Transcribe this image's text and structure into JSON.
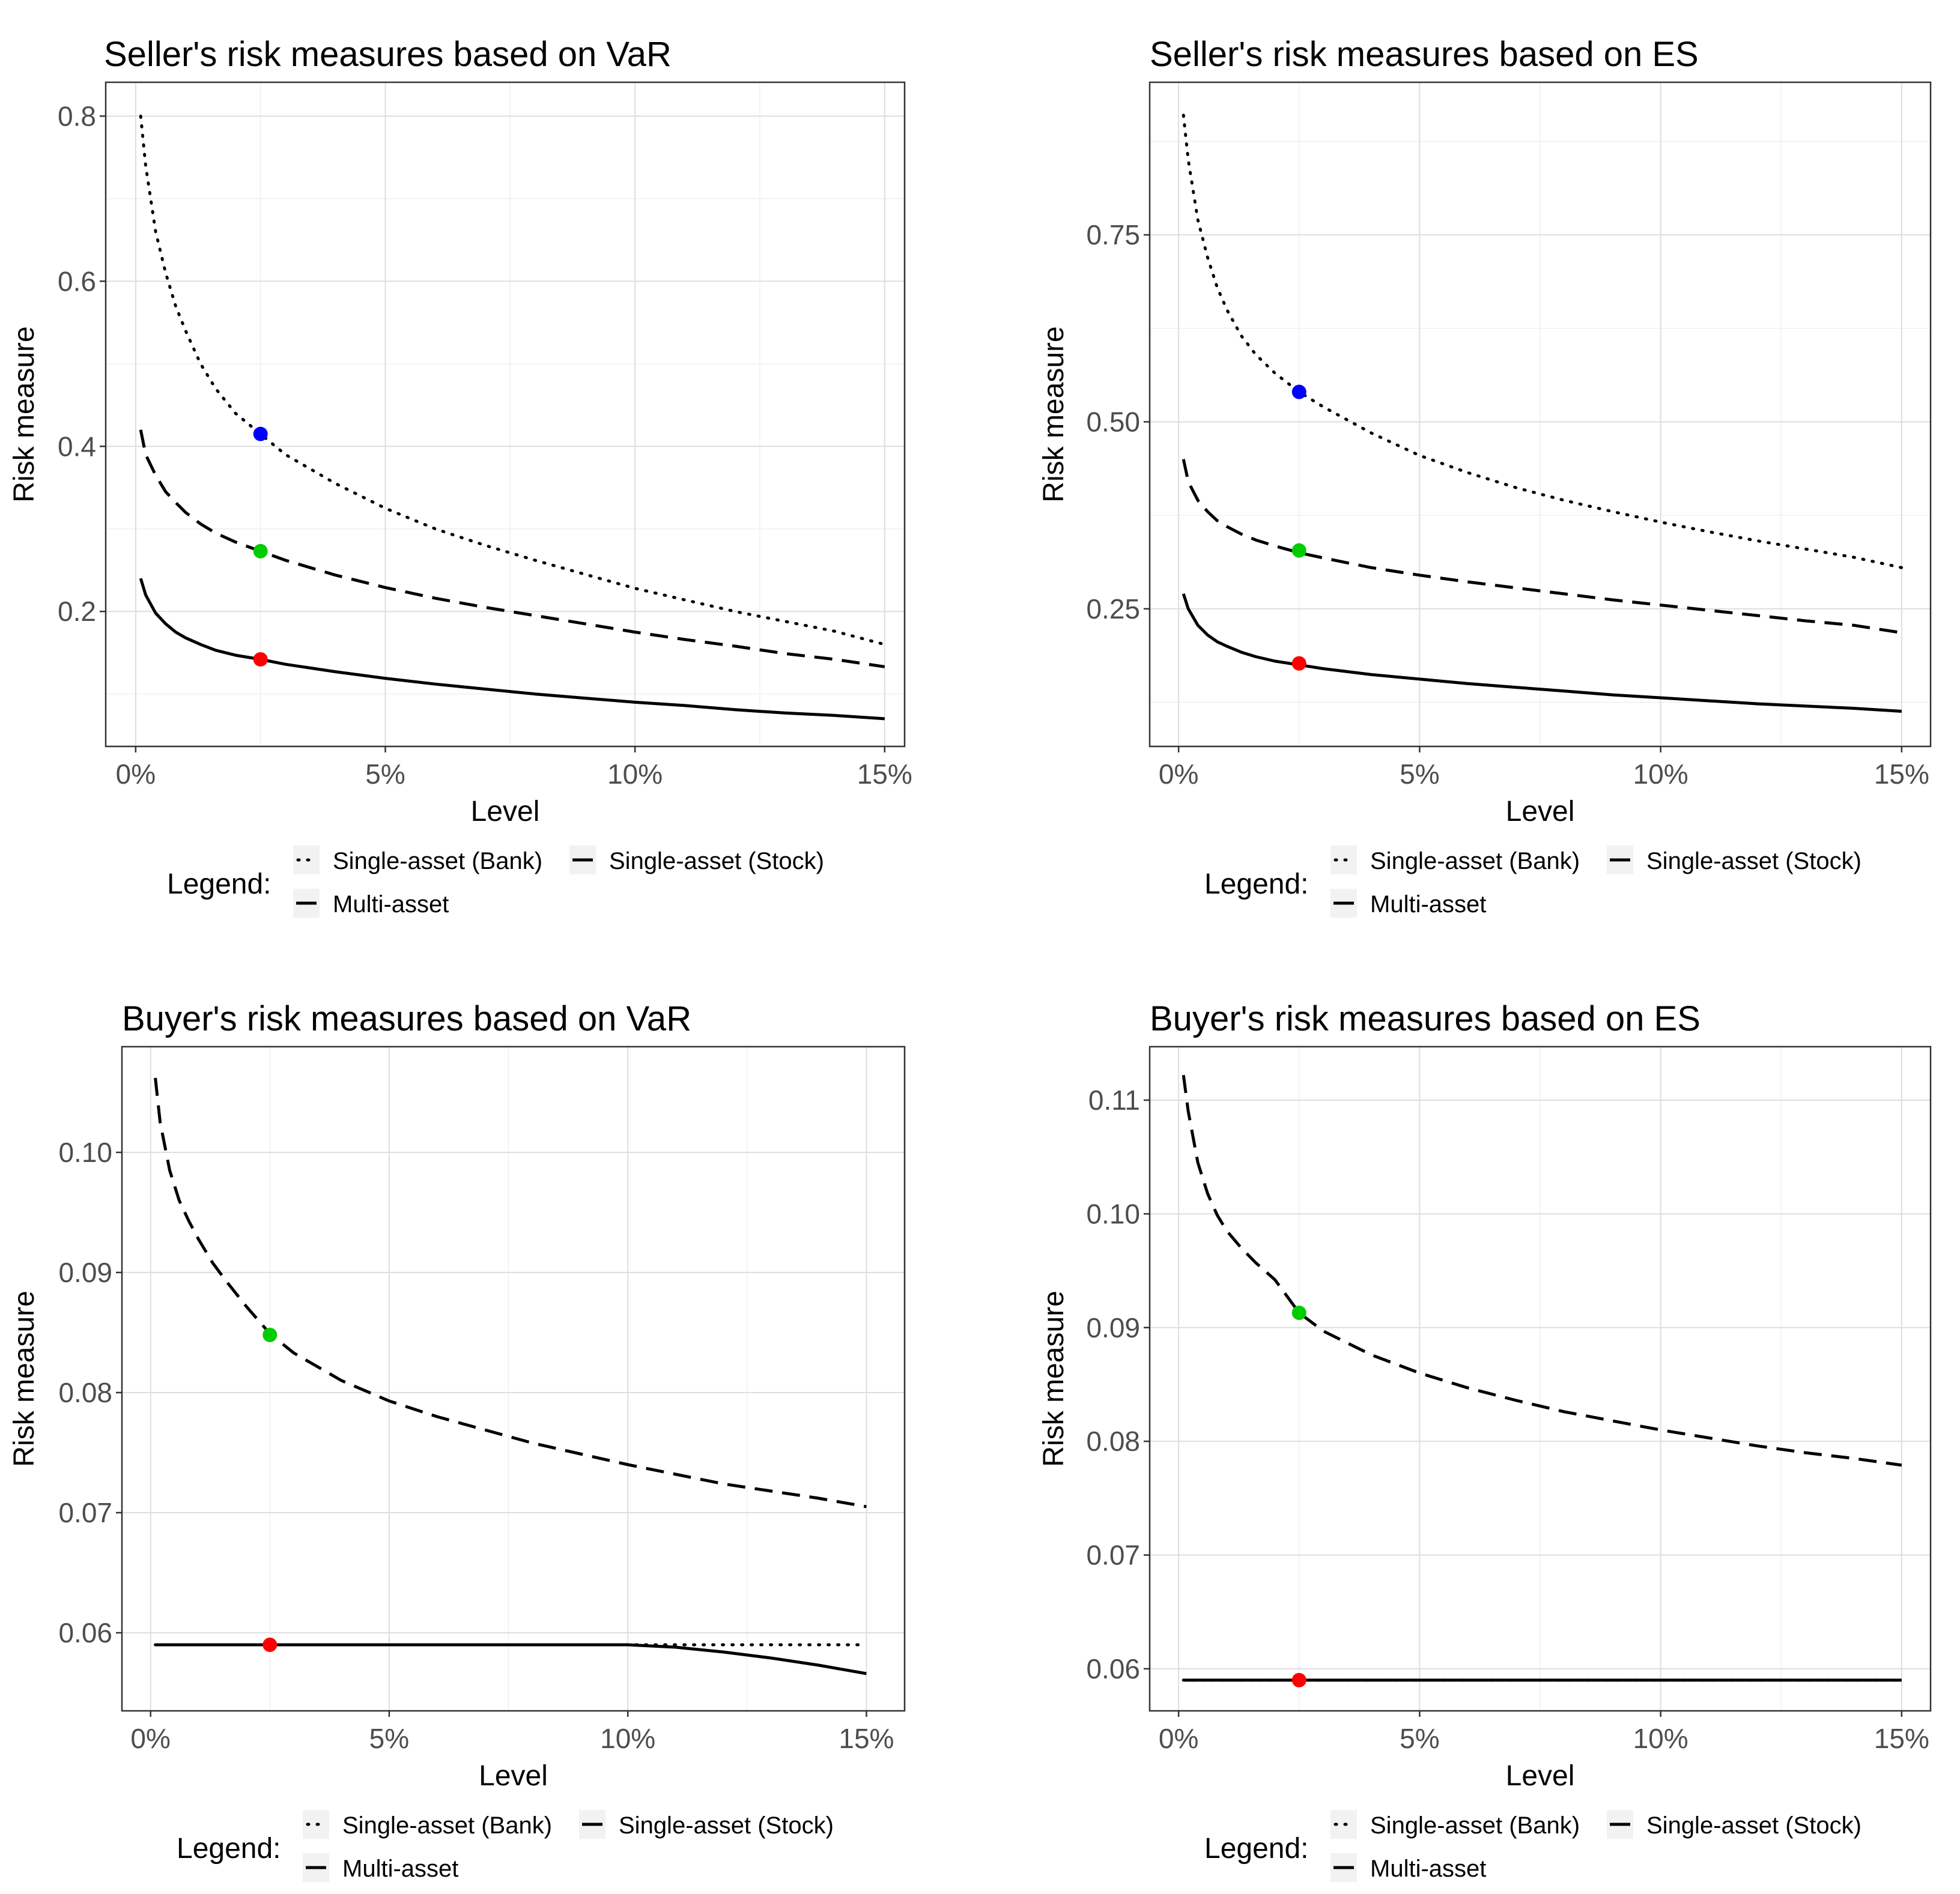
{
  "colors": {
    "line": "#000000",
    "grid": "#dedede",
    "panel_border": "#333333",
    "tick_text": "#4d4d4d",
    "text": "#000000",
    "key_bg": "#f2f2f2",
    "point_blue": "#0000ff",
    "point_green": "#00cd00",
    "point_red": "#ff0000"
  },
  "chart_data": [
    {
      "type": "line",
      "title": "Seller's risk measures based on VaR",
      "xlabel": "Level",
      "ylabel": "Risk measure",
      "xlim": [
        -0.006,
        0.154
      ],
      "ylim": [
        0.0365,
        0.841
      ],
      "x_ticks": [
        0,
        0.05,
        0.1,
        0.15
      ],
      "x_tick_labels": [
        "0%",
        "5%",
        "10%",
        "15%"
      ],
      "y_ticks": [
        0.2,
        0.4,
        0.6,
        0.8
      ],
      "y_tick_labels": [
        "0.2",
        "0.4",
        "0.6",
        "0.8"
      ],
      "y_minor": [
        0.1,
        0.3,
        0.5,
        0.7
      ],
      "series": [
        {
          "name": "Single-asset (Bank)",
          "style": "dotted",
          "x": [
            0.001,
            0.002,
            0.004,
            0.006,
            0.008,
            0.01,
            0.013,
            0.016,
            0.02,
            0.025,
            0.03,
            0.04,
            0.05,
            0.06,
            0.07,
            0.08,
            0.09,
            0.1,
            0.11,
            0.12,
            0.13,
            0.14,
            0.15
          ],
          "y": [
            0.8,
            0.74,
            0.66,
            0.61,
            0.57,
            0.54,
            0.5,
            0.47,
            0.44,
            0.415,
            0.39,
            0.355,
            0.325,
            0.3,
            0.28,
            0.262,
            0.245,
            0.228,
            0.214,
            0.2,
            0.188,
            0.176,
            0.16
          ]
        },
        {
          "name": "Single-asset (Stock)",
          "style": "dashed",
          "x": [
            0.001,
            0.002,
            0.004,
            0.006,
            0.008,
            0.01,
            0.013,
            0.016,
            0.02,
            0.025,
            0.03,
            0.04,
            0.05,
            0.06,
            0.07,
            0.08,
            0.09,
            0.1,
            0.11,
            0.12,
            0.13,
            0.14,
            0.15
          ],
          "y": [
            0.42,
            0.39,
            0.365,
            0.345,
            0.332,
            0.32,
            0.306,
            0.295,
            0.284,
            0.273,
            0.262,
            0.244,
            0.229,
            0.216,
            0.205,
            0.195,
            0.185,
            0.175,
            0.166,
            0.158,
            0.149,
            0.142,
            0.133
          ]
        },
        {
          "name": "Multi-asset",
          "style": "solid",
          "x": [
            0.001,
            0.002,
            0.004,
            0.006,
            0.008,
            0.01,
            0.013,
            0.016,
            0.02,
            0.025,
            0.03,
            0.04,
            0.05,
            0.06,
            0.07,
            0.08,
            0.09,
            0.1,
            0.11,
            0.12,
            0.13,
            0.14,
            0.15
          ],
          "y": [
            0.24,
            0.22,
            0.198,
            0.185,
            0.175,
            0.168,
            0.16,
            0.153,
            0.147,
            0.142,
            0.136,
            0.127,
            0.119,
            0.112,
            0.106,
            0.1,
            0.095,
            0.09,
            0.086,
            0.081,
            0.077,
            0.074,
            0.07
          ]
        }
      ],
      "points": [
        {
          "x": 0.025,
          "y": 0.415,
          "color": "blue"
        },
        {
          "x": 0.025,
          "y": 0.273,
          "color": "green"
        },
        {
          "x": 0.025,
          "y": 0.142,
          "color": "red"
        }
      ],
      "legend": {
        "title": "Legend:",
        "entries": [
          "Single-asset (Bank)",
          "Single-asset (Stock)",
          "Multi-asset"
        ],
        "position": "bottom"
      }
    },
    {
      "type": "line",
      "title": "Seller's risk measures based on ES",
      "xlabel": "Level",
      "ylabel": "Risk measure",
      "xlim": [
        -0.006,
        0.156
      ],
      "ylim": [
        0.066,
        0.954
      ],
      "x_ticks": [
        0,
        0.05,
        0.1,
        0.15
      ],
      "x_tick_labels": [
        "0%",
        "5%",
        "10%",
        "15%"
      ],
      "y_ticks": [
        0.25,
        0.5,
        0.75
      ],
      "y_tick_labels": [
        "0.25",
        "0.50",
        "0.75"
      ],
      "y_minor": [
        0.125,
        0.375,
        0.625,
        0.875
      ],
      "series": [
        {
          "name": "Single-asset (Bank)",
          "style": "dotted",
          "x": [
            0.001,
            0.002,
            0.004,
            0.006,
            0.008,
            0.01,
            0.013,
            0.016,
            0.02,
            0.025,
            0.03,
            0.04,
            0.05,
            0.06,
            0.07,
            0.08,
            0.09,
            0.1,
            0.11,
            0.12,
            0.13,
            0.14,
            0.15
          ],
          "y": [
            0.91,
            0.85,
            0.77,
            0.72,
            0.68,
            0.65,
            0.615,
            0.59,
            0.565,
            0.54,
            0.52,
            0.485,
            0.455,
            0.432,
            0.412,
            0.395,
            0.38,
            0.366,
            0.353,
            0.341,
            0.33,
            0.319,
            0.305
          ]
        },
        {
          "name": "Single-asset (Stock)",
          "style": "dashed",
          "x": [
            0.001,
            0.002,
            0.004,
            0.006,
            0.008,
            0.01,
            0.013,
            0.016,
            0.02,
            0.025,
            0.03,
            0.04,
            0.05,
            0.06,
            0.07,
            0.08,
            0.09,
            0.1,
            0.11,
            0.12,
            0.13,
            0.14,
            0.15
          ],
          "y": [
            0.45,
            0.42,
            0.395,
            0.38,
            0.368,
            0.36,
            0.35,
            0.342,
            0.334,
            0.325,
            0.318,
            0.305,
            0.295,
            0.286,
            0.278,
            0.27,
            0.262,
            0.255,
            0.248,
            0.241,
            0.234,
            0.228,
            0.218
          ]
        },
        {
          "name": "Multi-asset",
          "style": "solid",
          "x": [
            0.001,
            0.002,
            0.004,
            0.006,
            0.008,
            0.01,
            0.013,
            0.016,
            0.02,
            0.025,
            0.03,
            0.04,
            0.05,
            0.06,
            0.07,
            0.08,
            0.09,
            0.1,
            0.11,
            0.12,
            0.13,
            0.14,
            0.15
          ],
          "y": [
            0.27,
            0.25,
            0.228,
            0.215,
            0.206,
            0.2,
            0.192,
            0.186,
            0.18,
            0.175,
            0.17,
            0.162,
            0.156,
            0.15,
            0.145,
            0.14,
            0.135,
            0.131,
            0.127,
            0.123,
            0.12,
            0.117,
            0.113
          ]
        }
      ],
      "points": [
        {
          "x": 0.025,
          "y": 0.54,
          "color": "blue"
        },
        {
          "x": 0.025,
          "y": 0.328,
          "color": "green"
        },
        {
          "x": 0.025,
          "y": 0.177,
          "color": "red"
        }
      ],
      "legend": {
        "title": "Legend:",
        "entries": [
          "Single-asset (Bank)",
          "Single-asset (Stock)",
          "Multi-asset"
        ],
        "position": "bottom"
      }
    },
    {
      "type": "line",
      "title": "Buyer's risk measures based on VaR",
      "xlabel": "Level",
      "ylabel": "Risk measure",
      "xlim": [
        -0.006,
        0.158
      ],
      "ylim": [
        0.0535,
        0.1088
      ],
      "x_ticks": [
        0,
        0.05,
        0.1,
        0.15
      ],
      "x_tick_labels": [
        "0%",
        "5%",
        "10%",
        "15%"
      ],
      "y_ticks": [
        0.06,
        0.07,
        0.08,
        0.09,
        0.1
      ],
      "y_tick_labels": [
        "0.06",
        "0.07",
        "0.08",
        "0.09",
        "0.10"
      ],
      "y_minor": [],
      "series": [
        {
          "name": "Single-asset (Bank)",
          "style": "dotted",
          "x": [
            0.001,
            0.025,
            0.05,
            0.075,
            0.1,
            0.125,
            0.15
          ],
          "y": [
            0.059,
            0.059,
            0.059,
            0.059,
            0.059,
            0.059,
            0.059
          ]
        },
        {
          "name": "Single-asset (Stock)",
          "style": "dashed",
          "x": [
            0.001,
            0.002,
            0.004,
            0.006,
            0.008,
            0.01,
            0.013,
            0.016,
            0.02,
            0.025,
            0.03,
            0.04,
            0.05,
            0.06,
            0.07,
            0.08,
            0.09,
            0.1,
            0.11,
            0.12,
            0.13,
            0.14,
            0.15
          ],
          "y": [
            0.1062,
            0.1025,
            0.0985,
            0.096,
            0.0943,
            0.0928,
            0.0908,
            0.0892,
            0.0872,
            0.0849,
            0.0833,
            0.081,
            0.0793,
            0.078,
            0.0769,
            0.0758,
            0.0749,
            0.074,
            0.0732,
            0.0724,
            0.0718,
            0.0712,
            0.0705
          ]
        },
        {
          "name": "Multi-asset",
          "style": "solid",
          "x": [
            0.001,
            0.025,
            0.05,
            0.075,
            0.1,
            0.11,
            0.12,
            0.13,
            0.14,
            0.15
          ],
          "y": [
            0.059,
            0.059,
            0.059,
            0.059,
            0.059,
            0.0588,
            0.0584,
            0.0579,
            0.0573,
            0.0566
          ]
        }
      ],
      "points": [
        {
          "x": 0.025,
          "y": 0.0848,
          "color": "green"
        },
        {
          "x": 0.025,
          "y": 0.059,
          "color": "red"
        }
      ],
      "legend": {
        "title": "Legend:",
        "entries": [
          "Single-asset (Bank)",
          "Single-asset (Stock)",
          "Multi-asset"
        ],
        "position": "bottom"
      }
    },
    {
      "type": "line",
      "title": "Buyer's risk measures based on ES",
      "xlabel": "Level",
      "ylabel": "Risk measure",
      "xlim": [
        -0.006,
        0.156
      ],
      "ylim": [
        0.0563,
        0.1147
      ],
      "x_ticks": [
        0,
        0.05,
        0.1,
        0.15
      ],
      "x_tick_labels": [
        "0%",
        "5%",
        "10%",
        "15%"
      ],
      "y_ticks": [
        0.06,
        0.07,
        0.08,
        0.09,
        0.1,
        0.11
      ],
      "y_tick_labels": [
        "0.06",
        "0.07",
        "0.08",
        "0.09",
        "0.10",
        "0.11"
      ],
      "y_minor": [],
      "series": [
        {
          "name": "Single-asset (Bank)",
          "style": "dotted",
          "x": [
            0.001,
            0.025,
            0.05,
            0.075,
            0.1,
            0.125,
            0.15
          ],
          "y": [
            0.059,
            0.059,
            0.059,
            0.059,
            0.059,
            0.059,
            0.059
          ]
        },
        {
          "name": "Single-asset (Stock)",
          "style": "dashed",
          "x": [
            0.001,
            0.002,
            0.004,
            0.006,
            0.008,
            0.01,
            0.013,
            0.016,
            0.02,
            0.025,
            0.03,
            0.04,
            0.05,
            0.06,
            0.07,
            0.08,
            0.09,
            0.1,
            0.11,
            0.12,
            0.13,
            0.14,
            0.15
          ],
          "y": [
            0.1122,
            0.109,
            0.1045,
            0.1018,
            0.0999,
            0.0985,
            0.097,
            0.0957,
            0.0942,
            0.0913,
            0.0897,
            0.0876,
            0.086,
            0.0847,
            0.0836,
            0.0826,
            0.0818,
            0.081,
            0.0803,
            0.0796,
            0.079,
            0.0785,
            0.0779
          ]
        },
        {
          "name": "Multi-asset",
          "style": "solid",
          "x": [
            0.001,
            0.025,
            0.05,
            0.075,
            0.1,
            0.125,
            0.15
          ],
          "y": [
            0.059,
            0.059,
            0.059,
            0.059,
            0.059,
            0.059,
            0.059
          ]
        }
      ],
      "points": [
        {
          "x": 0.025,
          "y": 0.0913,
          "color": "green"
        },
        {
          "x": 0.025,
          "y": 0.059,
          "color": "red"
        }
      ],
      "legend": {
        "title": "Legend:",
        "entries": [
          "Single-asset (Bank)",
          "Single-asset (Stock)",
          "Multi-asset"
        ],
        "position": "bottom"
      }
    }
  ]
}
